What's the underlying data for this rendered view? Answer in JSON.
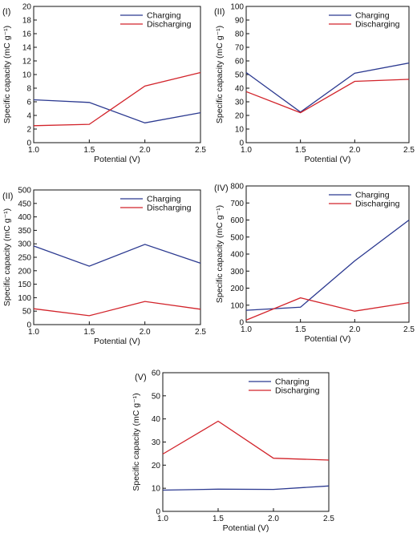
{
  "chart_data": [
    {
      "type": "line",
      "panel_label": "(I)",
      "x": [
        1.0,
        1.5,
        2.0,
        2.5
      ],
      "xlim": [
        1.0,
        2.5
      ],
      "ylim": [
        0,
        20
      ],
      "xticks": [
        "1.0",
        "1.5",
        "2.0",
        "2.5"
      ],
      "yticks": [
        "0",
        "2",
        "4",
        "6",
        "8",
        "10",
        "12",
        "14",
        "16",
        "18",
        "20"
      ],
      "xlabel": "Potential (V)",
      "ylabel": "Specific capacity (mC g⁻¹)",
      "legend_position": "top-right",
      "series": [
        {
          "name": "Charging",
          "color": "#2b3990",
          "values": [
            6.3,
            5.9,
            2.9,
            4.4
          ]
        },
        {
          "name": "Discharging",
          "color": "#d2232a",
          "values": [
            2.5,
            2.7,
            8.3,
            10.3
          ]
        }
      ]
    },
    {
      "type": "line",
      "panel_label": "(II)",
      "x": [
        1.0,
        1.5,
        2.0,
        2.5
      ],
      "xlim": [
        1.0,
        2.5
      ],
      "ylim": [
        0,
        100
      ],
      "xticks": [
        "1.0",
        "1.5",
        "2.0",
        "2.5"
      ],
      "yticks": [
        "0",
        "10",
        "20",
        "30",
        "40",
        "50",
        "60",
        "70",
        "80",
        "90",
        "100"
      ],
      "xlabel": "Potential (V)",
      "ylabel": "Specific capacity (mC g⁻¹)",
      "legend_position": "top-right",
      "series": [
        {
          "name": "Charging",
          "color": "#2b3990",
          "values": [
            51.5,
            22.5,
            51,
            58.5
          ]
        },
        {
          "name": "Discharging",
          "color": "#d2232a",
          "values": [
            37.5,
            22,
            45,
            46.5
          ]
        }
      ]
    },
    {
      "type": "line",
      "panel_label": "(II)",
      "x": [
        1.0,
        1.5,
        2.0,
        2.5
      ],
      "xlim": [
        1.0,
        2.5
      ],
      "ylim": [
        0,
        500
      ],
      "xticks": [
        "1.0",
        "1.5",
        "2.0",
        "2.5"
      ],
      "yticks": [
        "0",
        "50",
        "100",
        "150",
        "200",
        "250",
        "300",
        "350",
        "400",
        "450",
        "500"
      ],
      "xlabel": "Potential (V)",
      "ylabel": "Specific capacity (mC g⁻¹)",
      "legend_position": "top-right",
      "series": [
        {
          "name": "Charging",
          "color": "#2b3990",
          "values": [
            292,
            217,
            298,
            228
          ]
        },
        {
          "name": "Discharging",
          "color": "#d2232a",
          "values": [
            59,
            33,
            86,
            57
          ]
        }
      ]
    },
    {
      "type": "line",
      "panel_label": "(IV)",
      "x": [
        1.0,
        1.5,
        2.0,
        2.5
      ],
      "xlim": [
        1.0,
        2.5
      ],
      "ylim": [
        0,
        800
      ],
      "xticks": [
        "1.0",
        "1.5",
        "2.0",
        "2.5"
      ],
      "yticks": [
        "0",
        "100",
        "200",
        "300",
        "400",
        "500",
        "600",
        "700",
        "800"
      ],
      "xlabel": "Potential (V)",
      "ylabel": "Specific capacity (mC g⁻¹)",
      "legend_position": "top-right",
      "series": [
        {
          "name": "Charging",
          "color": "#2b3990",
          "x": [
            1.0,
            1.5,
            2.0,
            2.5
          ],
          "values": [
            70,
            88,
            360,
            600
          ]
        },
        {
          "name": "Discharging",
          "color": "#d2232a",
          "x": [
            1.0,
            1.5,
            2.0,
            2.5
          ],
          "values": [
            12,
            143,
            65,
            115
          ]
        }
      ]
    },
    {
      "type": "line",
      "panel_label": "(V)",
      "x": [
        1.0,
        1.5,
        2.0,
        2.5
      ],
      "xlim": [
        1.0,
        2.5
      ],
      "ylim": [
        0,
        60
      ],
      "xticks": [
        "1.0",
        "1.5",
        "2.0",
        "2.5"
      ],
      "yticks": [
        "0",
        "10",
        "20",
        "30",
        "40",
        "50",
        "60"
      ],
      "xlabel": "Potential (V)",
      "ylabel": "Specific capacity (mC g⁻¹)",
      "legend_position": "top-right",
      "series": [
        {
          "name": "Charging",
          "color": "#2b3990",
          "values": [
            9.2,
            9.6,
            9.5,
            11
          ]
        },
        {
          "name": "Discharging",
          "color": "#d2232a",
          "values": [
            24.8,
            39,
            23,
            22.2
          ]
        }
      ]
    }
  ]
}
